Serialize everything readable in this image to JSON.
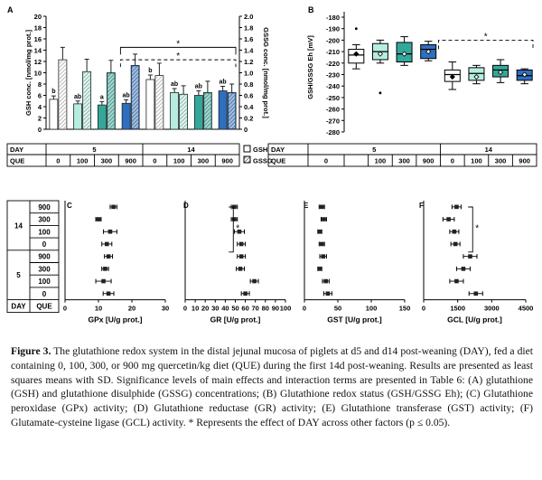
{
  "figure": {
    "caption": {
      "label": "Figure 3.",
      "text": "The glutathione redox system in the distal jejunal mucosa of piglets at d5 and d14 post-weaning (DAY), fed a diet containing 0, 100, 300, or 900 mg quercetin/kg diet (QUE) during the first 14d post-weaning. Results are presented as least squares means with SD. Significance levels of main effects and interaction terms are presented in Table 6: (A) glutathione (GSH) and glutathione disulphide (GSSG) concentrations; (B) Glutathione redox status (GSH/GSSG Eh); (C) Glutathione peroxidase (GPx) activity; (D) Glutathione reductase (GR) activity; (E) Glutathione transferase (GST) activity; (F) Glutamate-cysteine ligase (GCL) activity. * Represents the effect of DAY across other factors (p ≤ 0.05)."
    },
    "table_labels": {
      "day": "DAY",
      "que": "QUE",
      "days": [
        "5",
        "14"
      ],
      "que_levels": [
        "0",
        "100",
        "300",
        "900"
      ],
      "legend_gsh": "GSH",
      "legend_gssg": "GSSG"
    },
    "panel_c_e_f_row_labels": {
      "day_14": "14",
      "day_5": "5",
      "que": [
        "900",
        "300",
        "100",
        "0"
      ],
      "day_header": "DAY",
      "que_header": "QUE"
    }
  },
  "chart_data": [
    {
      "panel": "A",
      "type": "bar",
      "ylabel_left": "GSH conc. [nmol/mg prot.]",
      "ylabel_right": "GSSG conc. [nmol/mg prot.]",
      "ylim_left": [
        0,
        20
      ],
      "ylim_right": [
        0,
        2.0
      ],
      "yticks_left": [
        "0",
        "2",
        "4",
        "6",
        "8",
        "10",
        "12",
        "14",
        "16",
        "18",
        "20"
      ],
      "yticks_right": [
        "0",
        "0.2",
        "0.4",
        "0.6",
        "0.8",
        "1.0",
        "1.2",
        "1.4",
        "1.6",
        "1.8",
        "2.0"
      ],
      "groups": [
        {
          "day": "5",
          "que": "0",
          "gsh": 5.3,
          "gsh_sd": 0.6,
          "gssg": 1.23,
          "gssg_sd": 0.22,
          "letter": "b"
        },
        {
          "day": "5",
          "que": "100",
          "gsh": 4.5,
          "gsh_sd": 0.5,
          "gssg": 1.02,
          "gssg_sd": 0.22,
          "letter": "ab"
        },
        {
          "day": "5",
          "que": "300",
          "gsh": 4.3,
          "gsh_sd": 0.6,
          "gssg": 1.0,
          "gssg_sd": 0.22,
          "letter": "a"
        },
        {
          "day": "5",
          "que": "900",
          "gsh": 4.6,
          "gsh_sd": 0.6,
          "gssg": 1.13,
          "gssg_sd": 0.2,
          "letter": "ab"
        },
        {
          "day": "14",
          "que": "0",
          "gsh": 8.8,
          "gsh_sd": 0.8,
          "gssg": 0.95,
          "gssg_sd": 0.22,
          "letter": "b"
        },
        {
          "day": "14",
          "que": "100",
          "gsh": 6.5,
          "gsh_sd": 0.7,
          "gssg": 0.62,
          "gssg_sd": 0.15,
          "letter": "ab"
        },
        {
          "day": "14",
          "que": "300",
          "gsh": 6.0,
          "gsh_sd": 0.8,
          "gssg": 0.65,
          "gssg_sd": 0.2,
          "letter": "ab"
        },
        {
          "day": "14",
          "que": "900",
          "gsh": 6.8,
          "gsh_sd": 0.8,
          "gssg": 0.65,
          "gssg_sd": 0.15,
          "letter": "ab"
        }
      ],
      "annotations": [
        "*",
        "*"
      ]
    },
    {
      "panel": "B",
      "type": "box",
      "ylabel": "GSH/GSSG Eh [mV]",
      "ylim": [
        -280,
        -180
      ],
      "yticks": [
        "-180",
        "-190",
        "-200",
        "-210",
        "-220",
        "-230",
        "-240",
        "-250",
        "-260",
        "-270",
        "-280"
      ],
      "boxes": [
        {
          "day": "5",
          "que": "0",
          "min": -225,
          "q1": -220,
          "median": -213,
          "q3": -208,
          "max": -204,
          "mean": -212,
          "outliers": [
            -190
          ]
        },
        {
          "day": "5",
          "que": "100",
          "min": -220,
          "q1": -217,
          "median": -210,
          "q3": -203,
          "max": -200,
          "mean": -212,
          "outliers": [
            -246
          ]
        },
        {
          "day": "5",
          "que": "300",
          "min": -222,
          "q1": -219,
          "median": -212,
          "q3": -202,
          "max": -197,
          "mean": -212,
          "outliers": []
        },
        {
          "day": "5",
          "que": "900",
          "min": -218,
          "q1": -216,
          "median": -208,
          "q3": -204,
          "max": -201,
          "mean": -210,
          "outliers": []
        },
        {
          "day": "14",
          "que": "0",
          "min": -243,
          "q1": -236,
          "median": -230,
          "q3": -226,
          "max": -219,
          "mean": -232,
          "outliers": []
        },
        {
          "day": "14",
          "que": "100",
          "min": -238,
          "q1": -235,
          "median": -229,
          "q3": -224,
          "max": -222,
          "mean": -232,
          "outliers": []
        },
        {
          "day": "14",
          "que": "300",
          "min": -237,
          "q1": -232,
          "median": -226,
          "q3": -222,
          "max": -217,
          "mean": -228,
          "outliers": []
        },
        {
          "day": "14",
          "que": "900",
          "min": -238,
          "q1": -235,
          "median": -231,
          "q3": -226,
          "max": -225,
          "mean": -230,
          "outliers": []
        }
      ],
      "annotations": [
        "*"
      ]
    },
    {
      "panel": "C",
      "type": "scatter",
      "xlabel": "GPx [U/g prot.]",
      "xlim": [
        0,
        30
      ],
      "xticks": [
        "0",
        "10",
        "20",
        "30"
      ],
      "points": [
        {
          "day": "14",
          "que": "900",
          "value": 14.5,
          "sd": 1.0
        },
        {
          "day": "14",
          "que": "300",
          "value": 10.0,
          "sd": 0.8
        },
        {
          "day": "14",
          "que": "100",
          "value": 13.5,
          "sd": 2.0
        },
        {
          "day": "14",
          "que": "0",
          "value": 12.5,
          "sd": 1.5
        },
        {
          "day": "5",
          "que": "900",
          "value": 13.0,
          "sd": 1.2
        },
        {
          "day": "5",
          "que": "300",
          "value": 12.0,
          "sd": 1.0
        },
        {
          "day": "5",
          "que": "100",
          "value": 11.5,
          "sd": 2.3
        },
        {
          "day": "5",
          "que": "0",
          "value": 13.0,
          "sd": 1.6
        }
      ]
    },
    {
      "panel": "D",
      "type": "scatter",
      "xlabel": "GR [U/g prot.]",
      "xlim": [
        0,
        100
      ],
      "xticks": [
        "0",
        "10",
        "20",
        "30",
        "40",
        "50",
        "60",
        "70",
        "80",
        "90",
        "100"
      ],
      "points": [
        {
          "day": "14",
          "que": "900",
          "value": 49,
          "sd": 3
        },
        {
          "day": "14",
          "que": "300",
          "value": 49,
          "sd": 3
        },
        {
          "day": "14",
          "que": "100",
          "value": 54,
          "sd": 5
        },
        {
          "day": "14",
          "que": "0",
          "value": 56,
          "sd": 4
        },
        {
          "day": "5",
          "que": "900",
          "value": 56,
          "sd": 4
        },
        {
          "day": "5",
          "que": "300",
          "value": 55,
          "sd": 4
        },
        {
          "day": "5",
          "que": "100",
          "value": 69,
          "sd": 4
        },
        {
          "day": "5",
          "que": "0",
          "value": 60,
          "sd": 4
        }
      ],
      "annotations": [
        "*"
      ]
    },
    {
      "panel": "E",
      "type": "scatter",
      "xlabel": "GST [U/g prot.]",
      "xlim": [
        0,
        150
      ],
      "xticks": [
        "0",
        "50",
        "100",
        "150"
      ],
      "points": [
        {
          "day": "14",
          "que": "900",
          "value": 26,
          "sd": 4
        },
        {
          "day": "14",
          "que": "300",
          "value": 29,
          "sd": 4
        },
        {
          "day": "14",
          "que": "100",
          "value": 23,
          "sd": 3
        },
        {
          "day": "14",
          "que": "0",
          "value": 26,
          "sd": 4
        },
        {
          "day": "5",
          "que": "900",
          "value": 28,
          "sd": 5
        },
        {
          "day": "5",
          "que": "300",
          "value": 23,
          "sd": 3
        },
        {
          "day": "5",
          "que": "100",
          "value": 32,
          "sd": 5
        },
        {
          "day": "5",
          "que": "0",
          "value": 35,
          "sd": 6
        }
      ]
    },
    {
      "panel": "F",
      "type": "scatter",
      "xlabel": "GCL [U/g prot.]",
      "xlim": [
        0,
        4500
      ],
      "xticks": [
        "0",
        "1500",
        "3000",
        "4500"
      ],
      "points": [
        {
          "day": "14",
          "que": "900",
          "value": 1450,
          "sd": 200
        },
        {
          "day": "14",
          "que": "300",
          "value": 1100,
          "sd": 250
        },
        {
          "day": "14",
          "que": "100",
          "value": 1350,
          "sd": 200
        },
        {
          "day": "14",
          "que": "0",
          "value": 1400,
          "sd": 200
        },
        {
          "day": "5",
          "que": "900",
          "value": 2050,
          "sd": 300
        },
        {
          "day": "5",
          "que": "300",
          "value": 1750,
          "sd": 300
        },
        {
          "day": "5",
          "que": "100",
          "value": 1450,
          "sd": 300
        },
        {
          "day": "5",
          "que": "0",
          "value": 2300,
          "sd": 300
        }
      ],
      "annotations": [
        "*"
      ]
    }
  ]
}
